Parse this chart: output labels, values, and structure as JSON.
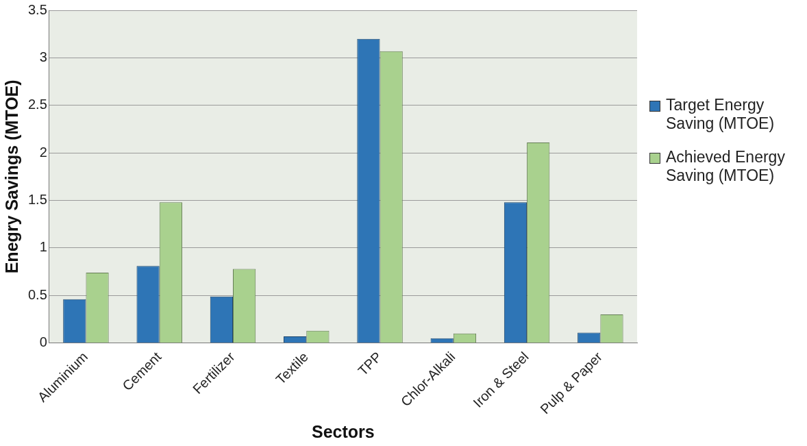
{
  "chart_data": {
    "type": "bar",
    "xlabel": "Sectors",
    "ylabel": "Enegry Savings (MTOE)",
    "categories": [
      "Aluminium",
      "Cement",
      "Fertilizer",
      "Textile",
      "TPP",
      "Chlor-Alkali",
      "Iron & Steel",
      "Pulp & Paper"
    ],
    "series": [
      {
        "name": "Target Energy Saving (MTOE)",
        "color": "#2e75b6",
        "values": [
          0.46,
          0.81,
          0.49,
          0.07,
          3.2,
          0.05,
          1.48,
          0.11
        ]
      },
      {
        "name": "Achieved Energy Saving  (MTOE)",
        "color": "#a9d18e",
        "values": [
          0.74,
          1.48,
          0.78,
          0.13,
          3.07,
          0.1,
          2.11,
          0.3
        ]
      }
    ],
    "ylim": [
      0,
      3.5
    ],
    "yticks": [
      0,
      0.5,
      1,
      1.5,
      2,
      2.5,
      3,
      3.5
    ],
    "grid": "y",
    "legend": "right"
  }
}
